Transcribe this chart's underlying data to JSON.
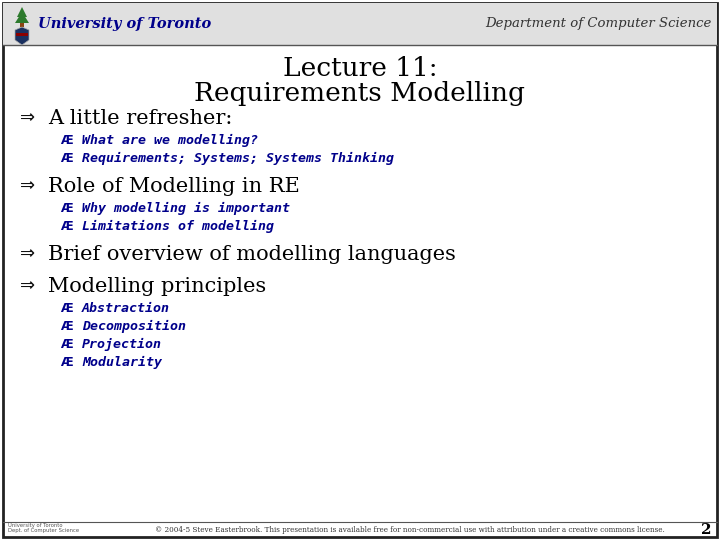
{
  "title_line1": "Lecture 11:",
  "title_line2": "Requirements Modelling",
  "header_left": "University of Toronto",
  "header_right": "Department of Computer Science",
  "bg_color": "#ffffff",
  "header_bg": "#e0e0e0",
  "border_color": "#222222",
  "header_text_color": "#00008B",
  "title_color": "#000000",
  "bullet_color": "#000000",
  "sub_bullet_color": "#00008B",
  "footer_text": "© 2004-5 Steve Easterbrook. This presentation is available free for non-commercial use with attribution under a creative commons license.",
  "slide_number": "2",
  "main_bullet_symbol": "⇒",
  "sub_bullet_symbol": "Æ",
  "bullets": [
    {
      "text": "A little refresher:",
      "subitems": [
        "What are we modelling?",
        "Requirements; Systems; Systems Thinking"
      ]
    },
    {
      "text": "Role of Modelling in RE",
      "subitems": [
        "Why modelling is important",
        "Limitations of modelling"
      ]
    },
    {
      "text": "Brief overview of modelling languages",
      "subitems": []
    },
    {
      "text": "Modelling principles",
      "subitems": [
        "Abstraction",
        "Decomposition",
        "Projection",
        "Modularity"
      ]
    }
  ]
}
